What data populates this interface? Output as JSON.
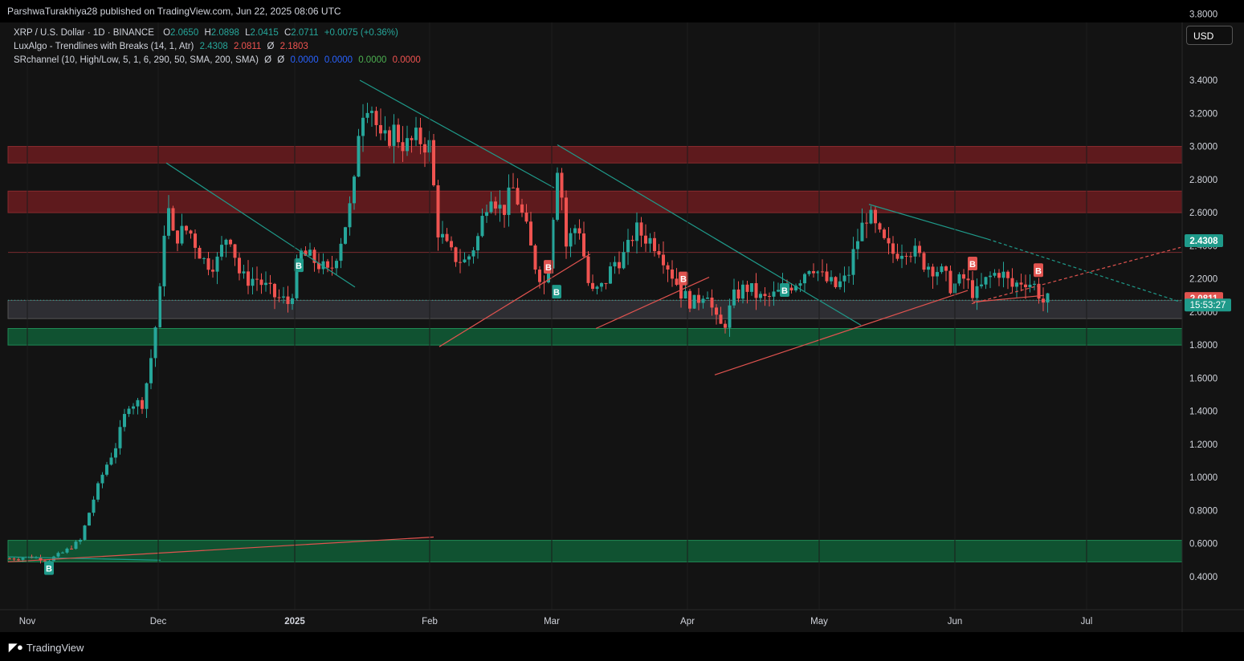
{
  "header": {
    "publisher_line": "ParshwaTurakhiya28 published on TradingView.com, Jun 22, 2025 08:06 UTC"
  },
  "legend": {
    "symbol": "XRP / U.S. Dollar · 1D · BINANCE",
    "o_label": "O",
    "o": "2.0650",
    "h_label": "H",
    "h": "2.0898",
    "l_label": "L",
    "l": "2.0415",
    "c_label": "C",
    "c": "2.0711",
    "change": "+0.0075 (+0.36%)",
    "ind1_name": "LuxAlgo - Trendlines with Breaks (14, 1, Atr)",
    "ind1_v1": "2.4308",
    "ind1_v2": "2.0811",
    "ind1_sym": "Ø",
    "ind1_v3": "2.1803",
    "ind2_name": "SRchannel (10, High/Low, 5, 1, 6, 290, 50, SMA, 200, SMA)",
    "ind2_sym1": "Ø",
    "ind2_sym2": "Ø",
    "ind2_v1": "0.0000",
    "ind2_v2": "0.0000",
    "ind2_v3": "0.0000",
    "ind2_v4": "0.0000"
  },
  "currency_button": "USD",
  "price_tags": {
    "upper": "2.4308",
    "lower": "2.0811",
    "countdown": "15:53:27"
  },
  "footer": {
    "brand": "TradingView"
  },
  "colors": {
    "up": "#26a69a",
    "down": "#ef5350",
    "bg": "#131313",
    "resistance": "#5a1e20",
    "support": "#0e4a2e"
  },
  "chart_data": {
    "type": "candlestick",
    "ylim": [
      0.3,
      3.85
    ],
    "y_ticks": [
      "3.8000",
      "3.4000",
      "3.2000",
      "3.0000",
      "2.8000",
      "2.6000",
      "2.4000",
      "2.2000",
      "2.0000",
      "1.8000",
      "1.6000",
      "1.4000",
      "1.2000",
      "1.0000",
      "0.8000",
      "0.6000",
      "0.4000"
    ],
    "x_labels": [
      "Nov",
      "Dec",
      "2025",
      "Feb",
      "Mar",
      "Apr",
      "May",
      "Jun",
      "Jul"
    ],
    "zones": [
      {
        "kind": "resistance",
        "from": 2.9,
        "to": 3.0
      },
      {
        "kind": "resistance",
        "from": 2.6,
        "to": 2.73
      },
      {
        "kind": "support",
        "from": 1.8,
        "to": 1.9
      },
      {
        "kind": "support",
        "from": 0.49,
        "to": 0.62
      },
      {
        "kind": "neutral",
        "from": 1.96,
        "to": 2.07
      }
    ],
    "break_labels": [
      {
        "text": "B",
        "dir": "up",
        "price": 2.28
      },
      {
        "text": "B",
        "dir": "down",
        "price": 2.27
      },
      {
        "text": "B",
        "dir": "up",
        "price": 2.12
      },
      {
        "text": "B",
        "dir": "down",
        "price": 2.2
      },
      {
        "text": "B",
        "dir": "up",
        "price": 2.13
      },
      {
        "text": "B",
        "dir": "down",
        "price": 2.29
      },
      {
        "text": "B",
        "dir": "down",
        "price": 2.25
      },
      {
        "text": "B",
        "dir": "up",
        "price": 0.45
      }
    ],
    "last_price": 2.0711
  }
}
